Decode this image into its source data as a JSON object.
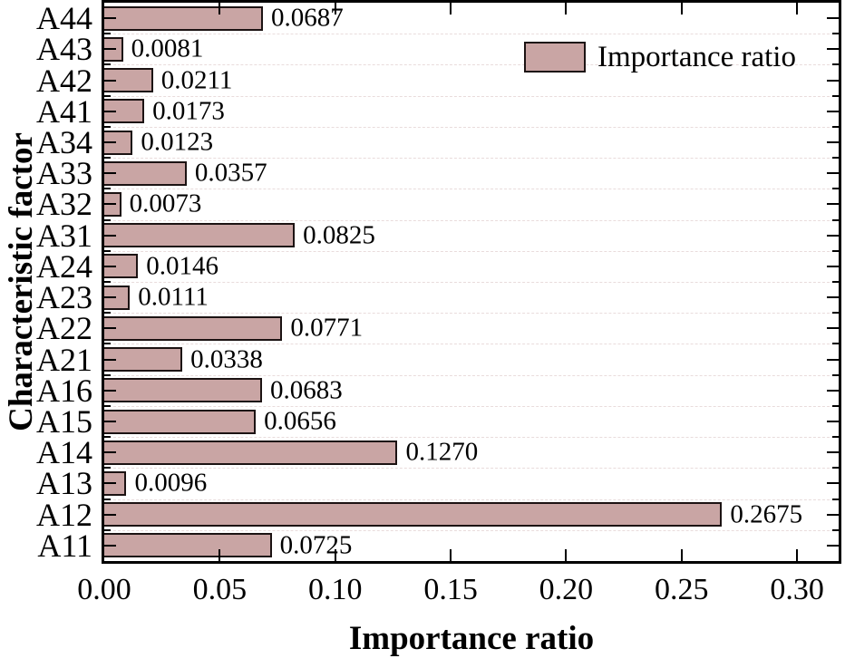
{
  "chart_data": {
    "type": "bar",
    "orientation": "horizontal",
    "title": "",
    "xlabel": "Importance ratio",
    "ylabel": "Characteristic factor",
    "legend_label": "Importance ratio",
    "legend_position": "upper-right",
    "categories": [
      "A44",
      "A43",
      "A42",
      "A41",
      "A34",
      "A33",
      "A32",
      "A31",
      "A24",
      "A23",
      "A22",
      "A21",
      "A16",
      "A15",
      "A14",
      "A13",
      "A12",
      "A11"
    ],
    "values": [
      0.0687,
      0.0081,
      0.0211,
      0.0173,
      0.0123,
      0.0357,
      0.0073,
      0.0825,
      0.0146,
      0.0111,
      0.0771,
      0.0338,
      0.0683,
      0.0656,
      0.127,
      0.0096,
      0.2675,
      0.0725
    ],
    "value_labels": [
      "0.0687",
      "0.0081",
      "0.0211",
      "0.0173",
      "0.0123",
      "0.0357",
      "0.0073",
      "0.0825",
      "0.0146",
      "0.0111",
      "0.0771",
      "0.0338",
      "0.0683",
      "0.0656",
      "0.1270",
      "0.0096",
      "0.2675",
      "0.0725"
    ],
    "x_tick_values": [
      0.0,
      0.05,
      0.1,
      0.15,
      0.2,
      0.25,
      0.3
    ],
    "x_tick_labels": [
      "0.00",
      "0.05",
      "0.10",
      "0.15",
      "0.20",
      "0.25",
      "0.30"
    ],
    "xlim": [
      0,
      0.318
    ],
    "bar_color": "#c9a5a4",
    "bar_edge_color": "#1c1313",
    "grid": "horizontal-dashed-at-category-boundaries",
    "grid_color": "#e9dcdc",
    "axis_color": "#000000"
  }
}
